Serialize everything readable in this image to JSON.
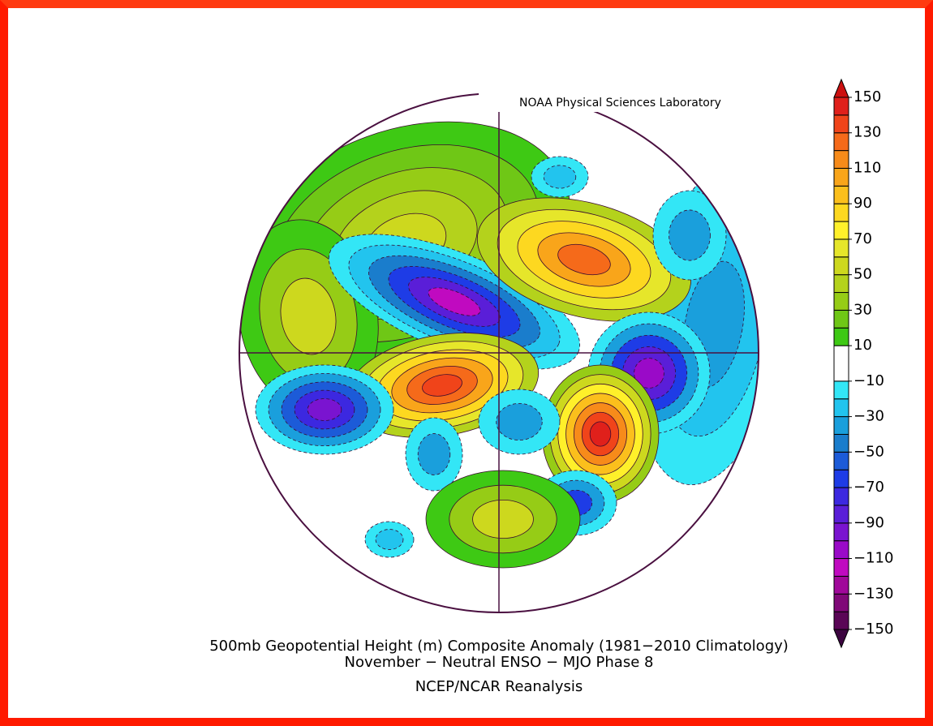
{
  "header": {
    "credit": "NOAA Physical Sciences Laboratory"
  },
  "caption": {
    "line1": "500mb Geopotential Height (m) Composite Anomaly (1981−2010 Climatology)",
    "line2": "November − Neutral ENSO − MJO Phase 8",
    "line3": "NCEP/NCAR Reanalysis"
  },
  "colorbar": {
    "levels": [
      -150,
      -140,
      -130,
      -120,
      -110,
      -100,
      -90,
      -80,
      -70,
      -60,
      -50,
      -40,
      -30,
      -20,
      -10,
      10,
      20,
      30,
      40,
      50,
      60,
      70,
      80,
      90,
      100,
      110,
      120,
      130,
      140,
      150
    ],
    "colors": [
      "#5a0656",
      "#800878",
      "#a0089a",
      "#c00ac0",
      "#9a0ac8",
      "#7a14d0",
      "#5a1ed8",
      "#3c28e0",
      "#1e3ce6",
      "#1c5bd8",
      "#1a7dcc",
      "#1a9fdc",
      "#22c4ee",
      "#33e6f6",
      "#ffffff",
      "#3ec914",
      "#6fc716",
      "#96cc16",
      "#b4d21c",
      "#cdd81e",
      "#e6e62a",
      "#fff02a",
      "#fdd820",
      "#fbbf1c",
      "#f9a51a",
      "#f78b1a",
      "#f56a1a",
      "#f0441a",
      "#e0201b"
    ],
    "under_color": "#3c0440",
    "over_color": "#cc1010",
    "ticks": [
      150,
      130,
      110,
      90,
      70,
      50,
      30,
      10,
      {
        "value": -10,
        "label": "−10"
      },
      {
        "value": -30,
        "label": "−30"
      },
      {
        "value": -50,
        "label": "−50"
      },
      {
        "value": -70,
        "label": "−70"
      },
      {
        "value": -90,
        "label": "−90"
      },
      {
        "value": -110,
        "label": "−110"
      },
      {
        "value": -130,
        "label": "−130"
      },
      {
        "value": -150,
        "label": "−150"
      }
    ]
  }
}
